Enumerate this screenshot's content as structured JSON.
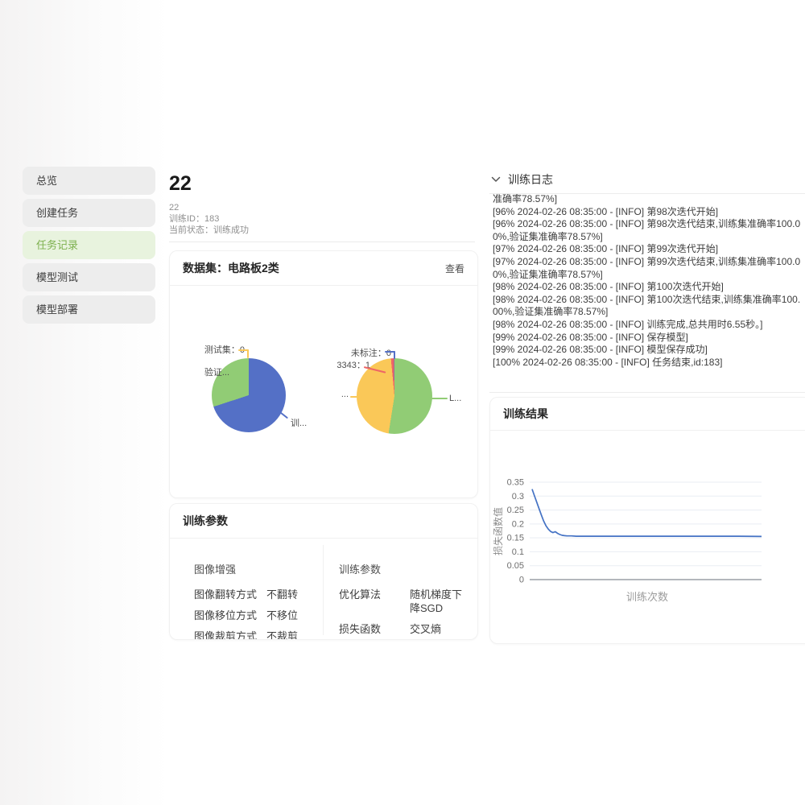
{
  "sidebar": {
    "items": [
      {
        "label": "总览",
        "active": false
      },
      {
        "label": "创建任务",
        "active": false
      },
      {
        "label": "任务记录",
        "active": true
      },
      {
        "label": "模型测试",
        "active": false
      },
      {
        "label": "模型部署",
        "active": false
      }
    ],
    "active_bg": "#e8f3de",
    "active_color": "#7db04e"
  },
  "task": {
    "title": "22",
    "subtitle": "22",
    "train_id_label": "训练ID：",
    "train_id": "183",
    "status_label": "当前状态：",
    "status": "训练成功"
  },
  "dataset": {
    "header": "数据集：电路板2类",
    "view_label": "查看"
  },
  "params": {
    "header": "训练参数",
    "augment": {
      "title": "图像增强",
      "rows": [
        {
          "label": "图像翻转方式",
          "value": "不翻转"
        },
        {
          "label": "图像移位方式",
          "value": "不移位"
        },
        {
          "label": "图像裁剪方式",
          "value": "不裁剪"
        }
      ]
    },
    "training": {
      "title": "训练参数",
      "rows": [
        {
          "label": "优化算法",
          "value": "随机梯度下降SGD"
        },
        {
          "label": "损失函数",
          "value": "交叉熵"
        }
      ]
    }
  },
  "log_panel": {
    "header": "训练日志",
    "collapse_icon": "chevron-down",
    "clipped_first_line": "准确率78.57%]",
    "lines": [
      "[96% 2024-02-26 08:35:00 - [INFO] 第98次迭代开始]",
      "[96% 2024-02-26 08:35:00 - [INFO] 第98次迭代结束,训练集准确率100.00%,验证集准确率78.57%]",
      "[97% 2024-02-26 08:35:00 - [INFO] 第99次迭代开始]",
      "[97% 2024-02-26 08:35:00 - [INFO] 第99次迭代结束,训练集准确率100.00%,验证集准确率78.57%]",
      "[98% 2024-02-26 08:35:00 - [INFO] 第100次迭代开始]",
      "[98% 2024-02-26 08:35:00 - [INFO] 第100次迭代结束,训练集准确率100.00%,验证集准确率78.57%]",
      "[98% 2024-02-26 08:35:00 - [INFO] 训练完成,总共用时6.55秒。]",
      "[99% 2024-02-26 08:35:00 - [INFO] 保存模型]",
      "[99% 2024-02-26 08:35:00 - [INFO] 模型保存成功]",
      "[100% 2024-02-26 08:35:00 - [INFO] 任务结束,id:183]"
    ]
  },
  "result_panel": {
    "header": "训练结果"
  },
  "chart_data": [
    {
      "type": "pie",
      "name": "dataset-split-pie",
      "slices": [
        {
          "label": "训...",
          "pct": 70,
          "color": "#5470c6"
        },
        {
          "label": "验证...",
          "pct": 30,
          "color": "#91cc75"
        },
        {
          "label": "测试集：0",
          "pct": 0,
          "value": 0,
          "color": "#fac858"
        }
      ]
    },
    {
      "type": "pie",
      "name": "dataset-class-pie",
      "slices": [
        {
          "label": "L...",
          "pct": 52.5,
          "color": "#91cc75"
        },
        {
          "label": "...",
          "pct": 46,
          "color": "#fac858"
        },
        {
          "label": "3343：1",
          "pct": 1.3,
          "value": 1,
          "color": "#ee6666"
        },
        {
          "label": "未标注：0",
          "pct": 0.2,
          "value": 0,
          "color": "#5470c6"
        }
      ]
    },
    {
      "type": "line",
      "name": "loss-curve",
      "xlabel": "训练次数",
      "ylabel": "损失函数值",
      "ylim": [
        0,
        0.35
      ],
      "yticks": [
        0,
        0.05,
        0.1,
        0.15,
        0.2,
        0.25,
        0.3,
        0.35
      ],
      "x_range": [
        1,
        100
      ],
      "grid": true,
      "line_color": "#4472c4",
      "points": [
        {
          "x": 1,
          "y": 0.325
        },
        {
          "x": 2,
          "y": 0.301
        },
        {
          "x": 3,
          "y": 0.278
        },
        {
          "x": 4,
          "y": 0.255
        },
        {
          "x": 5,
          "y": 0.232
        },
        {
          "x": 6,
          "y": 0.21
        },
        {
          "x": 7,
          "y": 0.193
        },
        {
          "x": 8,
          "y": 0.181
        },
        {
          "x": 9,
          "y": 0.173
        },
        {
          "x": 10,
          "y": 0.169
        },
        {
          "x": 11,
          "y": 0.172
        },
        {
          "x": 12,
          "y": 0.166
        },
        {
          "x": 13,
          "y": 0.162
        },
        {
          "x": 14,
          "y": 0.159
        },
        {
          "x": 15,
          "y": 0.158
        },
        {
          "x": 16,
          "y": 0.157
        },
        {
          "x": 18,
          "y": 0.157
        },
        {
          "x": 20,
          "y": 0.156
        },
        {
          "x": 25,
          "y": 0.156
        },
        {
          "x": 30,
          "y": 0.156
        },
        {
          "x": 40,
          "y": 0.156
        },
        {
          "x": 50,
          "y": 0.156
        },
        {
          "x": 60,
          "y": 0.156
        },
        {
          "x": 70,
          "y": 0.156
        },
        {
          "x": 80,
          "y": 0.156
        },
        {
          "x": 90,
          "y": 0.156
        },
        {
          "x": 100,
          "y": 0.155
        }
      ]
    }
  ]
}
